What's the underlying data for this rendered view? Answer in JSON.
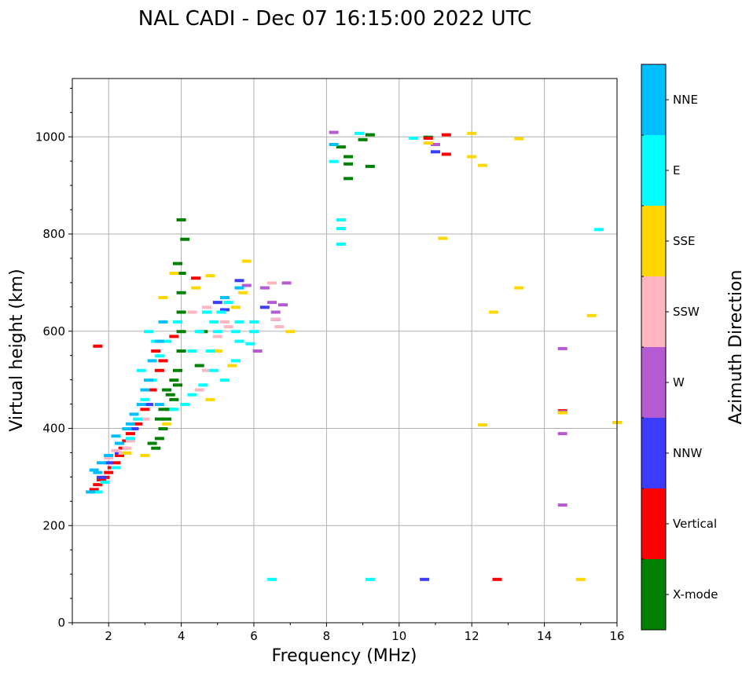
{
  "chart_data": {
    "type": "scatter",
    "title": "NAL CADI - Dec 07 16:15:00 2022 UTC",
    "xlabel": "Frequency (MHz)",
    "ylabel": "Virtual height (km)",
    "xlim": [
      1,
      16
    ],
    "ylim": [
      0,
      1120
    ],
    "xticks": [
      2,
      4,
      6,
      8,
      10,
      12,
      14,
      16
    ],
    "xtick_labels": [
      "2",
      "4",
      "6",
      "8",
      "10",
      "12",
      "14",
      "16"
    ],
    "yticks": [
      0,
      200,
      400,
      600,
      800,
      1000
    ],
    "ytick_labels": [
      "0",
      "200",
      "400",
      "600",
      "800",
      "1000"
    ],
    "grid": true,
    "colorbar": {
      "label": "Azimuth Direction",
      "categories": [
        {
          "name": "X-mode",
          "color": "#008000"
        },
        {
          "name": "Vertical",
          "color": "#ff0000"
        },
        {
          "name": "NNW",
          "color": "#3c3cff"
        },
        {
          "name": "W",
          "color": "#b45ad2"
        },
        {
          "name": "SSW",
          "color": "#ffb6c1"
        },
        {
          "name": "SSE",
          "color": "#ffd700"
        },
        {
          "name": "E",
          "color": "#00ffff"
        },
        {
          "name": "NNE",
          "color": "#00bfff"
        }
      ]
    },
    "series": [
      {
        "name": "X-mode",
        "points": [
          [
            3.3,
            360
          ],
          [
            3.4,
            380
          ],
          [
            3.5,
            400
          ],
          [
            3.6,
            420
          ],
          [
            3.7,
            440
          ],
          [
            3.8,
            460
          ],
          [
            3.6,
            480
          ],
          [
            3.8,
            500
          ],
          [
            3.9,
            520
          ],
          [
            4.0,
            560
          ],
          [
            4.0,
            600
          ],
          [
            4.0,
            640
          ],
          [
            4.0,
            680
          ],
          [
            4.0,
            720
          ],
          [
            3.9,
            740
          ],
          [
            4.1,
            790
          ],
          [
            4.0,
            830
          ],
          [
            3.2,
            370
          ],
          [
            3.4,
            420
          ],
          [
            3.7,
            470
          ],
          [
            3.9,
            490
          ],
          [
            3.5,
            440
          ],
          [
            8.4,
            980
          ],
          [
            8.6,
            960
          ],
          [
            8.6,
            945
          ],
          [
            8.6,
            915
          ],
          [
            9.0,
            995
          ],
          [
            9.2,
            940
          ],
          [
            9.2,
            1005
          ],
          [
            10.8,
            1000
          ],
          [
            4.5,
            530
          ],
          [
            4.6,
            600
          ]
        ]
      },
      {
        "name": "Vertical",
        "points": [
          [
            1.6,
            275
          ],
          [
            1.7,
            285
          ],
          [
            1.8,
            295
          ],
          [
            1.9,
            300
          ],
          [
            2.0,
            310
          ],
          [
            2.1,
            320
          ],
          [
            2.2,
            330
          ],
          [
            2.3,
            345
          ],
          [
            2.4,
            360
          ],
          [
            2.5,
            375
          ],
          [
            2.6,
            390
          ],
          [
            2.8,
            410
          ],
          [
            3.0,
            440
          ],
          [
            3.2,
            480
          ],
          [
            3.4,
            520
          ],
          [
            3.5,
            540
          ],
          [
            1.7,
            570
          ],
          [
            3.3,
            560
          ],
          [
            3.8,
            590
          ],
          [
            11.3,
            1005
          ],
          [
            11.3,
            965
          ],
          [
            10.8,
            998
          ],
          [
            4.4,
            710
          ],
          [
            12.7,
            90
          ],
          [
            14.5,
            437
          ]
        ]
      },
      {
        "name": "NNW",
        "points": [
          [
            1.8,
            300
          ],
          [
            2.0,
            330
          ],
          [
            2.3,
            350
          ],
          [
            2.7,
            400
          ],
          [
            3.1,
            450
          ],
          [
            5.0,
            660
          ],
          [
            5.2,
            645
          ],
          [
            6.6,
            625
          ],
          [
            6.3,
            650
          ],
          [
            10.7,
            90
          ],
          [
            11.0,
            970
          ],
          [
            5.6,
            705
          ]
        ]
      },
      {
        "name": "W",
        "points": [
          [
            8.2,
            1010
          ],
          [
            11.0,
            985
          ],
          [
            14.5,
            565
          ],
          [
            14.5,
            435
          ],
          [
            14.5,
            390
          ],
          [
            14.5,
            243
          ],
          [
            6.5,
            660
          ],
          [
            6.8,
            655
          ],
          [
            6.6,
            640
          ],
          [
            5.8,
            695
          ],
          [
            6.9,
            700
          ],
          [
            6.1,
            560
          ],
          [
            6.3,
            690
          ]
        ]
      },
      {
        "name": "SSW",
        "points": [
          [
            2.0,
            340
          ],
          [
            2.2,
            355
          ],
          [
            2.5,
            360
          ],
          [
            2.6,
            375
          ],
          [
            2.4,
            350
          ],
          [
            3.0,
            420
          ],
          [
            4.5,
            480
          ],
          [
            4.7,
            520
          ],
          [
            4.9,
            560
          ],
          [
            5.0,
            590
          ],
          [
            5.3,
            610
          ],
          [
            6.5,
            700
          ],
          [
            6.7,
            610
          ],
          [
            6.6,
            625
          ],
          [
            4.3,
            640
          ],
          [
            4.7,
            650
          ],
          [
            5.2,
            620
          ]
        ]
      },
      {
        "name": "SSE",
        "points": [
          [
            2.5,
            350
          ],
          [
            3.0,
            345
          ],
          [
            3.6,
            410
          ],
          [
            3.8,
            720
          ],
          [
            4.4,
            690
          ],
          [
            4.8,
            715
          ],
          [
            5.0,
            560
          ],
          [
            5.5,
            650
          ],
          [
            5.7,
            680
          ],
          [
            5.8,
            745
          ],
          [
            7.0,
            600
          ],
          [
            10.8,
            988
          ],
          [
            11.2,
            792
          ],
          [
            12.0,
            1008
          ],
          [
            12.0,
            960
          ],
          [
            12.3,
            942
          ],
          [
            12.6,
            640
          ],
          [
            12.3,
            408
          ],
          [
            13.3,
            997
          ],
          [
            13.3,
            690
          ],
          [
            15.0,
            90
          ],
          [
            15.3,
            633
          ],
          [
            16.0,
            413
          ],
          [
            4.8,
            460
          ],
          [
            5.4,
            530
          ],
          [
            3.5,
            670
          ],
          [
            14.5,
            433
          ]
        ]
      },
      {
        "name": "E",
        "points": [
          [
            1.7,
            270
          ],
          [
            1.9,
            290
          ],
          [
            2.2,
            320
          ],
          [
            2.6,
            380
          ],
          [
            2.8,
            420
          ],
          [
            3.0,
            460
          ],
          [
            3.2,
            500
          ],
          [
            3.4,
            550
          ],
          [
            3.6,
            580
          ],
          [
            3.9,
            620
          ],
          [
            4.3,
            560
          ],
          [
            4.5,
            600
          ],
          [
            4.7,
            640
          ],
          [
            4.9,
            620
          ],
          [
            5.1,
            640
          ],
          [
            5.3,
            660
          ],
          [
            5.5,
            600
          ],
          [
            5.6,
            580
          ],
          [
            5.5,
            540
          ],
          [
            5.2,
            500
          ],
          [
            4.9,
            520
          ],
          [
            4.6,
            490
          ],
          [
            4.3,
            470
          ],
          [
            4.1,
            450
          ],
          [
            3.8,
            440
          ],
          [
            8.2,
            950
          ],
          [
            8.4,
            830
          ],
          [
            8.4,
            812
          ],
          [
            8.4,
            780
          ],
          [
            8.9,
            1008
          ],
          [
            9.2,
            90
          ],
          [
            10.4,
            998
          ],
          [
            15.5,
            810
          ],
          [
            6.5,
            90
          ],
          [
            4.8,
            560
          ],
          [
            5.0,
            600
          ],
          [
            5.6,
            620
          ],
          [
            6.0,
            600
          ],
          [
            6.0,
            620
          ],
          [
            5.9,
            575
          ],
          [
            3.1,
            600
          ],
          [
            3.3,
            580
          ],
          [
            2.9,
            520
          ]
        ]
      },
      {
        "name": "NNE",
        "points": [
          [
            1.6,
            315
          ],
          [
            1.8,
            330
          ],
          [
            2.0,
            345
          ],
          [
            2.3,
            370
          ],
          [
            2.6,
            410
          ],
          [
            2.9,
            450
          ],
          [
            3.1,
            500
          ],
          [
            3.2,
            540
          ],
          [
            3.4,
            580
          ],
          [
            3.5,
            620
          ],
          [
            3.4,
            450
          ],
          [
            3.0,
            480
          ],
          [
            2.7,
            430
          ],
          [
            2.5,
            400
          ],
          [
            2.2,
            385
          ],
          [
            1.5,
            270
          ],
          [
            1.7,
            310
          ],
          [
            5.2,
            670
          ],
          [
            5.6,
            690
          ],
          [
            8.2,
            985
          ]
        ]
      }
    ]
  }
}
